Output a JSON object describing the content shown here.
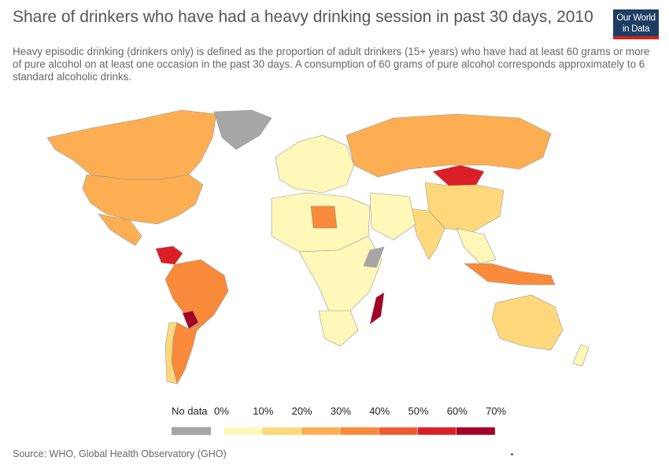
{
  "title": "Share of drinkers who have had a heavy drinking session in past 30 days, 2010",
  "subtitle": "Heavy episodic drinking (drinkers only) is defined as the proportion of adult drinkers (15+ years) who have had at least 60 grams or more of pure alcohol on at least one occasion in the past 30 days. A consumption of 60 grams of pure alcohol corresponds approximately to 6 standard alcoholic drinks.",
  "logo": {
    "line1": "Our World",
    "line2": "in Data",
    "bg_color": "#1d3d63",
    "accent_color": "#ce261e"
  },
  "source": "Source: WHO, Global Health Observatory (GHO)",
  "legend": {
    "no_data_label": "No data",
    "no_data_color": "#a6a6a6",
    "tick_labels": [
      "0%",
      "10%",
      "20%",
      "30%",
      "40%",
      "50%",
      "60%",
      "70%"
    ],
    "bin_colors": [
      "#fff8b8",
      "#fed87a",
      "#fdae53",
      "#f98a39",
      "#f15a2f",
      "#da1f26",
      "#a50026"
    ]
  },
  "map_data": {
    "type": "choropleth",
    "year": 2010,
    "unit": "%",
    "regions": [
      {
        "name": "Canada",
        "bin": 2
      },
      {
        "name": "United States",
        "bin": 2
      },
      {
        "name": "Mexico",
        "bin": 2
      },
      {
        "name": "Greenland",
        "bin": -1
      },
      {
        "name": "Brazil",
        "bin": 3
      },
      {
        "name": "Venezuela",
        "bin": 5
      },
      {
        "name": "Paraguay",
        "bin": 6
      },
      {
        "name": "Argentina",
        "bin": 3
      },
      {
        "name": "Chile",
        "bin": 1
      },
      {
        "name": "Russia",
        "bin": 2
      },
      {
        "name": "Mongolia",
        "bin": 5
      },
      {
        "name": "China",
        "bin": 1
      },
      {
        "name": "India",
        "bin": 1
      },
      {
        "name": "Madagascar",
        "bin": 6
      },
      {
        "name": "Australia",
        "bin": 1
      },
      {
        "name": "Libya",
        "bin": 3
      },
      {
        "name": "Somalia",
        "bin": -1
      },
      {
        "name": "Indonesia",
        "bin": 3
      }
    ]
  }
}
